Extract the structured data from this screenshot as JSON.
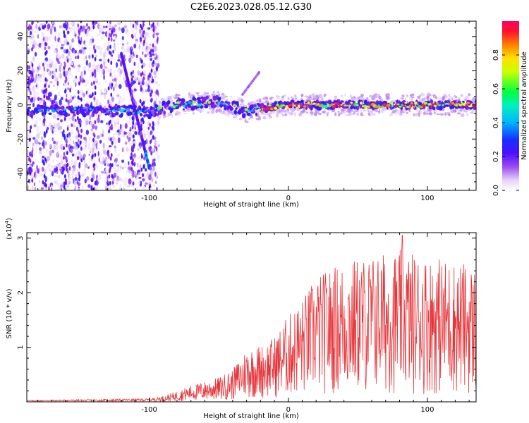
{
  "title": "C2E6.2023.028.05.12.G30",
  "chart_data": [
    {
      "type": "heatmap",
      "xlabel": "Height of straight line (km)",
      "ylabel": "Frequency (Hz)",
      "xlim": [
        -188,
        135
      ],
      "ylim": [
        -50,
        49
      ],
      "xticks": [
        -100,
        0,
        100
      ],
      "xtick_labels": [
        "-100",
        "0",
        "100"
      ],
      "yticks": [
        -40,
        -20,
        0,
        20,
        40
      ],
      "ytick_labels": [
        "-40",
        "-20",
        "0",
        "20",
        "40"
      ],
      "colorbar": {
        "label": "Normalized spectral amplitude",
        "range": [
          0,
          1
        ],
        "ticks": [
          0.0,
          0.2,
          0.4,
          0.6,
          0.8
        ],
        "tick_labels": [
          "0.0",
          "0.2",
          "0.4",
          "0.6",
          "0.8"
        ],
        "colors": [
          "#ffffff",
          "#c9a0f0",
          "#7c1bf0",
          "#2a17ff",
          "#00c8ff",
          "#00ff80",
          "#ffff00",
          "#ff7a00",
          "#ff0040"
        ]
      },
      "ridge": {
        "description_points": [
          {
            "x": -188,
            "y": -3
          },
          {
            "x": -150,
            "y": -3
          },
          {
            "x": -100,
            "y": -4
          },
          {
            "x": -80,
            "y": 0
          },
          {
            "x": -50,
            "y": 2
          },
          {
            "x": -30,
            "y": -4
          },
          {
            "x": -20,
            "y": -2
          },
          {
            "x": 0,
            "y": 0
          },
          {
            "x": 50,
            "y": 0
          },
          {
            "x": 100,
            "y": 0
          },
          {
            "x": 135,
            "y": 0
          }
        ],
        "streak": [
          {
            "x": -120,
            "y": 30
          },
          {
            "x": -100,
            "y": -37
          }
        ]
      },
      "grid": false
    },
    {
      "type": "line",
      "xlabel": "Height of straight line (km)",
      "ylabel": "SNR (10 * v/v)",
      "y_multiplier_label": "(x10",
      "y_multiplier_exp": "4",
      "y_multiplier_close": ")",
      "xlim": [
        -188,
        135
      ],
      "ylim": [
        0,
        3.1
      ],
      "xticks": [
        -100,
        0,
        100
      ],
      "xtick_labels": [
        "-100",
        "0",
        "100"
      ],
      "yticks": [
        1,
        2,
        3
      ],
      "ytick_labels": [
        "1",
        "2",
        "3"
      ],
      "line_color": "#e8353a",
      "envelope": [
        {
          "x": -188,
          "y": 0.02
        },
        {
          "x": -100,
          "y": 0.05
        },
        {
          "x": -90,
          "y": 0.1
        },
        {
          "x": -70,
          "y": 0.3
        },
        {
          "x": -50,
          "y": 0.45
        },
        {
          "x": -40,
          "y": 0.6
        },
        {
          "x": -30,
          "y": 1.0
        },
        {
          "x": -20,
          "y": 1.05
        },
        {
          "x": -10,
          "y": 1.2
        },
        {
          "x": 0,
          "y": 1.6
        },
        {
          "x": 10,
          "y": 1.9
        },
        {
          "x": 20,
          "y": 2.3
        },
        {
          "x": 40,
          "y": 2.6
        },
        {
          "x": 60,
          "y": 2.7
        },
        {
          "x": 80,
          "y": 2.8
        },
        {
          "x": 100,
          "y": 2.7
        },
        {
          "x": 120,
          "y": 2.6
        },
        {
          "x": 135,
          "y": 2.5
        }
      ],
      "peak": {
        "x": 82,
        "y": 3.05
      },
      "grid": false
    }
  ]
}
